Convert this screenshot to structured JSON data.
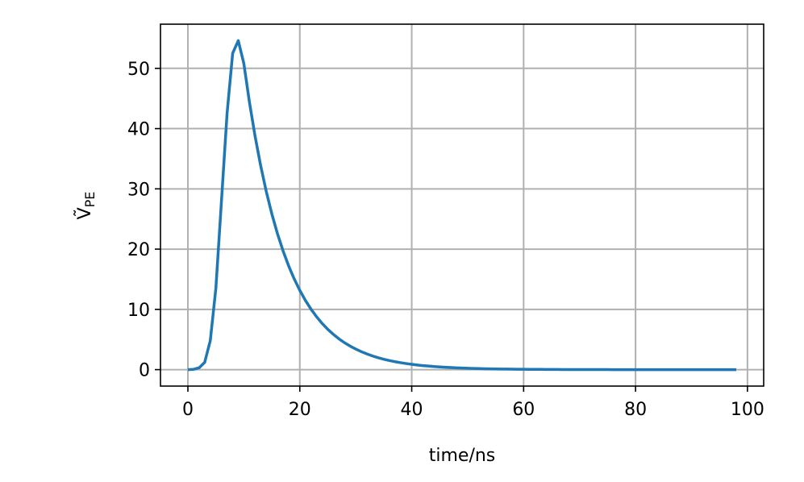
{
  "chart_data": {
    "type": "line",
    "xlabel": "time/ns",
    "ylabel": {
      "text": "Ṽ",
      "subscript": "PE"
    },
    "xlim": [
      -4.9,
      102.9
    ],
    "xticks": [
      0,
      20,
      40,
      60,
      80,
      100
    ],
    "ylim": [
      -2.73,
      57.33
    ],
    "yticks": [
      0,
      10,
      20,
      30,
      40,
      50
    ],
    "grid": true,
    "x": [
      0,
      1,
      2,
      3,
      4,
      5,
      6,
      7,
      8,
      9,
      10,
      11,
      12,
      13,
      14,
      15,
      16,
      17,
      18,
      19,
      20,
      21,
      22,
      23,
      24,
      25,
      26,
      27,
      28,
      29,
      30,
      31,
      32,
      33,
      34,
      35,
      36,
      37,
      38,
      39,
      40,
      41,
      42,
      43,
      44,
      45,
      46,
      47,
      48,
      49,
      50,
      51,
      52,
      53,
      54,
      55,
      56,
      57,
      58,
      59,
      60,
      61,
      62,
      63,
      64,
      65,
      66,
      67,
      68,
      69,
      70,
      71,
      72,
      73,
      74,
      75,
      76,
      77,
      78,
      79,
      80,
      81,
      82,
      83,
      84,
      85,
      86,
      87,
      88,
      89,
      90,
      91,
      92,
      93,
      94,
      95,
      96,
      97,
      98
    ],
    "series": [
      {
        "color": "#1f77b4",
        "values": [
          0,
          0.05,
          0.3,
          1.2,
          4.8,
          13.5,
          28,
          42.5,
          52.5,
          54.6,
          50.8,
          44.38,
          38.77,
          33.87,
          29.59,
          25.85,
          22.58,
          19.73,
          17.23,
          15.06,
          13.15,
          11.49,
          10.04,
          8.77,
          7.66,
          6.69,
          5.85,
          5.11,
          4.46,
          3.9,
          3.41,
          2.98,
          2.6,
          2.27,
          1.98,
          1.73,
          1.51,
          1.32,
          1.16,
          1.01,
          0.88,
          0.77,
          0.67,
          0.59,
          0.51,
          0.45,
          0.39,
          0.34,
          0.3,
          0.26,
          0.23,
          0.2,
          0.18,
          0.15,
          0.13,
          0.12,
          0.1,
          0.09,
          0.08,
          0.07,
          0.06,
          0.05,
          0.05,
          0.04,
          0.03,
          0.03,
          0.03,
          0.02,
          0.02,
          0.02,
          0.01,
          0.01,
          0.01,
          0.01,
          0.01,
          0.01,
          0,
          0,
          0,
          0,
          0,
          0,
          0,
          0,
          0,
          0,
          0,
          0,
          0,
          0,
          0,
          0,
          0,
          0,
          0,
          0,
          0,
          0,
          0
        ]
      }
    ]
  }
}
